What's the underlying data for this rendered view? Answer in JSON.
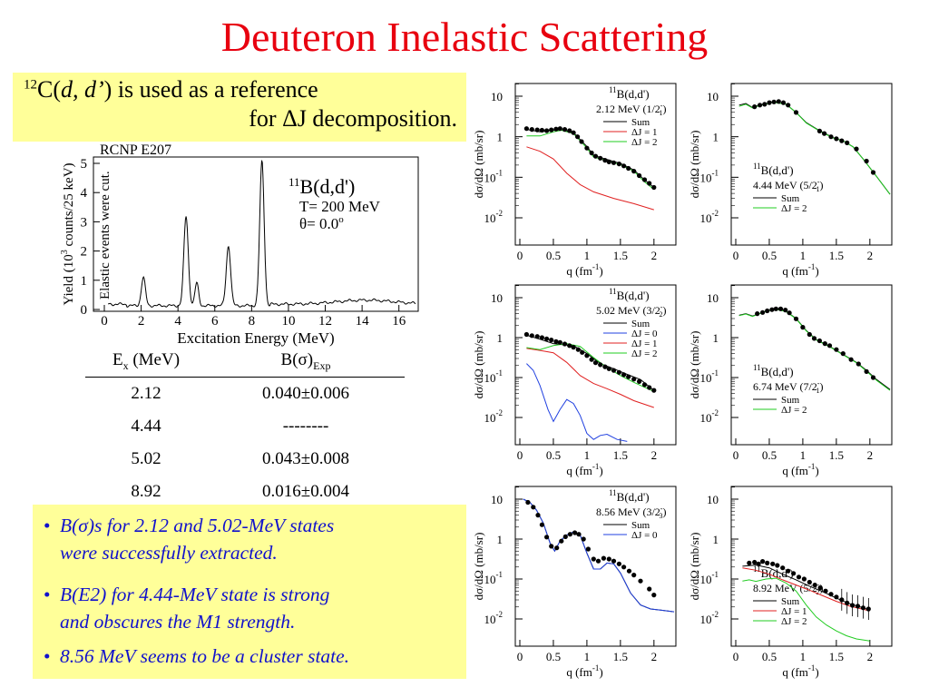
{
  "title": "Deuteron Inelastic Scattering",
  "reference": {
    "line1_sup": "12",
    "line1_nucleus": "C(",
    "line1_reaction": "d, d’",
    "line1_rest": ") is used as a reference",
    "line2": "for ΔJ decomposition."
  },
  "spectrum": {
    "experiment": "RCNP E207",
    "annotation": "Elastic events were cut.",
    "reaction_sup": "11",
    "reaction": "B(d,d')",
    "energy": "T= 200 MeV",
    "angle": "θ= 0.0",
    "angle_sup": "o",
    "xlabel": "Excitation Energy (MeV)",
    "ylabel_pre": "Yield (10",
    "ylabel_sup": "3",
    "ylabel_post": " counts/25 keV)",
    "xticks": [
      "0",
      "2",
      "4",
      "6",
      "8",
      "10",
      "12",
      "14",
      "16"
    ],
    "yticks": [
      "0",
      "1",
      "2",
      "3",
      "4",
      "5"
    ]
  },
  "table": {
    "header_ex": "E",
    "header_ex_sub": "x",
    "header_ex_unit": " (MeV)",
    "header_b": "B(σ)",
    "header_b_sub": "Exp",
    "rows": [
      {
        "ex": "2.12",
        "b": "0.040±0.006"
      },
      {
        "ex": "4.44",
        "b": "--------"
      },
      {
        "ex": "5.02",
        "b": "0.043±0.008"
      },
      {
        "ex": "8.92",
        "b": "0.016±0.004"
      }
    ]
  },
  "bullets": [
    {
      "dot": "•",
      "line1": "B(σ)s for 2.12 and 5.02-MeV states",
      "line2": "were successfully extracted."
    },
    {
      "dot": "•",
      "line1": "B(E2) for 4.44-MeV state is strong",
      "line2": "and obscures the M1 strength."
    },
    {
      "dot": "•",
      "line1": "8.56 MeV seems to be a cluster state.",
      "line2": ""
    }
  ],
  "panel_common": {
    "ylabel": "dσ/dΩ (mb/sr)",
    "xlabel": "q (fm",
    "xlabel_sup": "-1",
    "xlabel_post": ")",
    "reaction_sup": "11",
    "reaction": "B(d,d')",
    "xticks": [
      "0",
      "0.5",
      "1",
      "1.5",
      "2"
    ],
    "yticks": [
      {
        "base": "10",
        "exp": ""
      },
      {
        "base": "1",
        "exp": ""
      },
      {
        "base": "10",
        "exp": "-1"
      },
      {
        "base": "10",
        "exp": "-2"
      }
    ]
  },
  "panels": [
    {
      "id": "p1",
      "state": "2.12 MeV (1/2",
      "state_sup": "-",
      "state_sub": "1",
      "state_end": ")",
      "legend": [
        {
          "label": "Sum",
          "color": "#000000"
        },
        {
          "label": "ΔJ = 1",
          "color": "#e02020"
        },
        {
          "label": "ΔJ = 2",
          "color": "#22cc22"
        }
      ]
    },
    {
      "id": "p2",
      "state": "4.44 MeV (5/2",
      "state_sup": "-",
      "state_sub": "1",
      "state_end": ")",
      "legend": [
        {
          "label": "Sum",
          "color": "#000000"
        },
        {
          "label": "ΔJ = 2",
          "color": "#22cc22"
        }
      ]
    },
    {
      "id": "p3",
      "state": "5.02 MeV (3/2",
      "state_sup": "-",
      "state_sub": "2",
      "state_end": ")",
      "legend": [
        {
          "label": "Sum",
          "color": "#000000"
        },
        {
          "label": "ΔJ = 0",
          "color": "#2040e0"
        },
        {
          "label": "ΔJ = 1",
          "color": "#e02020"
        },
        {
          "label": "ΔJ = 2",
          "color": "#22cc22"
        }
      ]
    },
    {
      "id": "p4",
      "state": "6.74 MeV (7/2",
      "state_sup": "-",
      "state_sub": "1",
      "state_end": ")",
      "legend": [
        {
          "label": "Sum",
          "color": "#000000"
        },
        {
          "label": "ΔJ = 2",
          "color": "#22cc22"
        }
      ]
    },
    {
      "id": "p5",
      "state": "8.56 MeV (3/2",
      "state_sup": "-",
      "state_sub": "3",
      "state_end": ")",
      "legend": [
        {
          "label": "Sum",
          "color": "#000000"
        },
        {
          "label": "ΔJ = 0",
          "color": "#2040e0"
        }
      ]
    },
    {
      "id": "p6",
      "state": "8.92 MeV (5/2",
      "state_sup": "-",
      "state_sub": "2",
      "state_end": ")",
      "legend": [
        {
          "label": "Sum",
          "color": "#000000"
        },
        {
          "label": "ΔJ = 1",
          "color": "#e02020"
        },
        {
          "label": "ΔJ = 2",
          "color": "#22cc22"
        }
      ]
    }
  ]
}
